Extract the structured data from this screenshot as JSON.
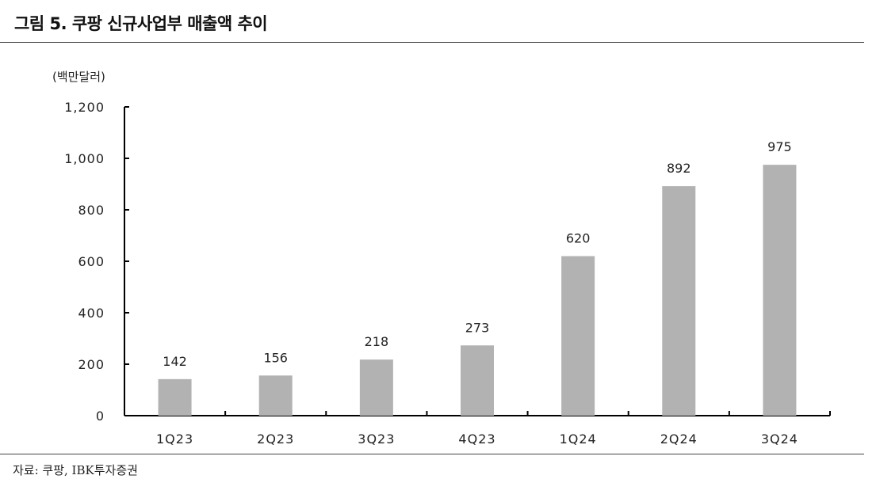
{
  "figure": {
    "title": "그림 5. 쿠팡 신규사업부 매출액 추이",
    "source": "자료: 쿠팡, IBK투자증권"
  },
  "chart_data": {
    "type": "bar",
    "ylabel": "(백만달러)",
    "categories": [
      "1Q23",
      "2Q23",
      "3Q23",
      "4Q23",
      "1Q24",
      "2Q24",
      "3Q24"
    ],
    "values": [
      142,
      156,
      218,
      273,
      620,
      892,
      975
    ],
    "ylim": [
      0,
      1200
    ],
    "yticks": [
      0,
      200,
      400,
      600,
      800,
      1000,
      1200
    ],
    "ytick_labels": [
      "0",
      "200",
      "400",
      "600",
      "800",
      "1,000",
      "1,200"
    ],
    "bar_color": "#b2b2b2",
    "grid": false,
    "legend": "none"
  }
}
